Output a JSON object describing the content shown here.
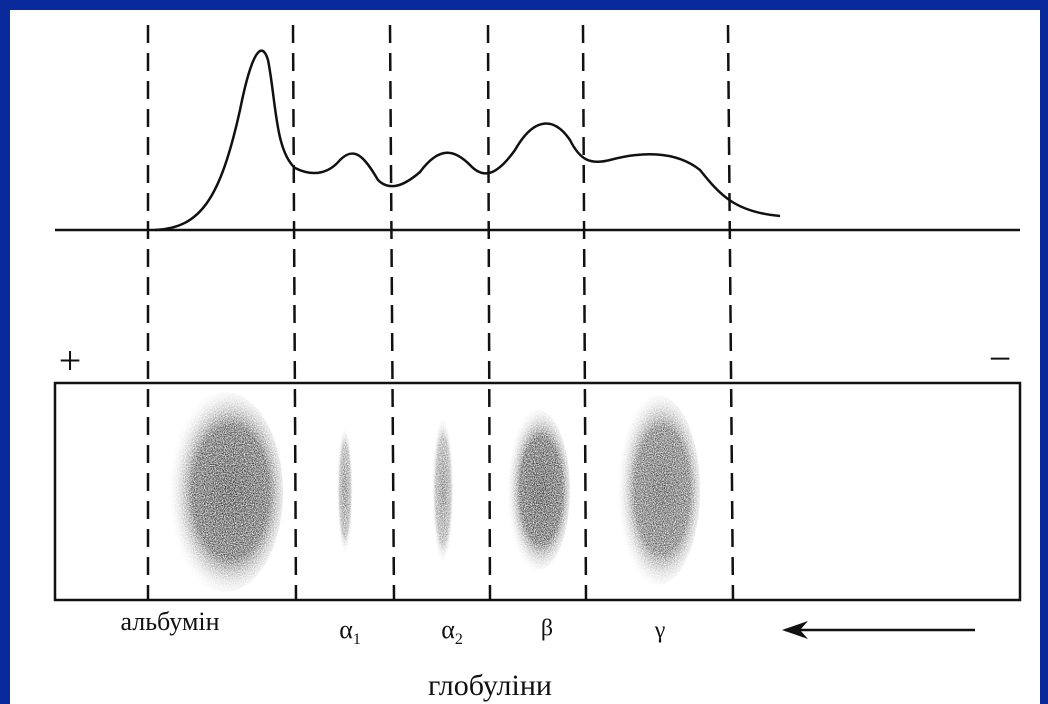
{
  "signs": {
    "plus": "+",
    "minus": "−"
  },
  "fractions": [
    {
      "symbol": "альбумін"
    },
    {
      "symbol": "α",
      "sub": "1"
    },
    {
      "symbol": "α",
      "sub": "2"
    },
    {
      "symbol": "β"
    },
    {
      "symbol": "γ"
    }
  ],
  "group_label": "глобуліни"
}
